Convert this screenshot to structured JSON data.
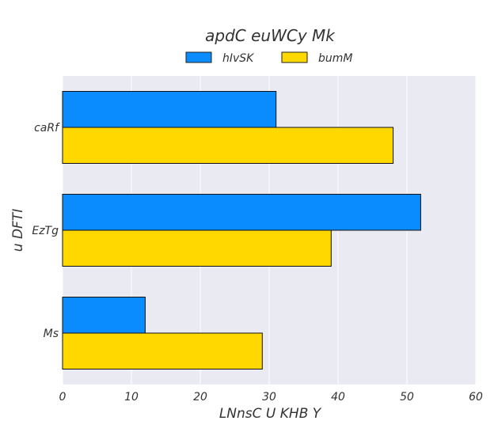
{
  "chart_data": {
    "type": "bar",
    "orientation": "horizontal",
    "title": "apdC euWCy Mk",
    "xlabel": "LNnsC U  KHB Y",
    "ylabel": "u DFTI",
    "categories": [
      "caRf",
      "EzTg",
      "Ms"
    ],
    "series": [
      {
        "name": "hIvSK",
        "values": [
          31,
          52,
          12
        ],
        "color": "#0a8cff"
      },
      {
        "name": "bumM",
        "values": [
          48,
          39,
          29
        ],
        "color": "#ffd800"
      }
    ],
    "xlim": [
      0,
      60
    ],
    "xticks": [
      "0",
      "10",
      "20",
      "30",
      "40",
      "50",
      "60"
    ],
    "grid": true,
    "legend_position": "top-center",
    "plot_background": "#eaeaf2"
  }
}
